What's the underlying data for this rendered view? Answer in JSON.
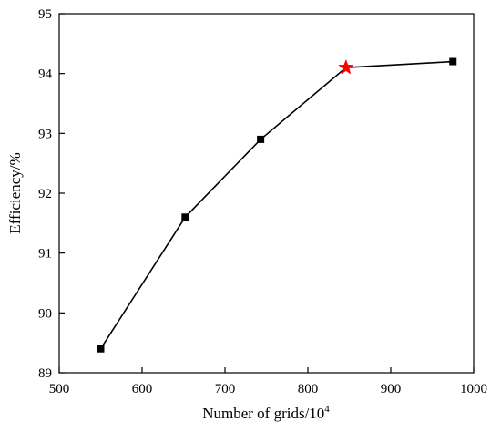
{
  "chart_data": {
    "type": "line",
    "title": "",
    "xlabel_main": "Number of grids/10",
    "xlabel_sup": "4",
    "ylabel": "Efficiency/%",
    "xlim": [
      500,
      1000
    ],
    "ylim": [
      89,
      95
    ],
    "xticks": [
      500,
      600,
      700,
      800,
      900,
      1000
    ],
    "yticks": [
      89,
      90,
      91,
      92,
      93,
      94,
      95
    ],
    "grid": false,
    "legend": "none",
    "series": [
      {
        "x": [
          550,
          652,
          743,
          846,
          975
        ],
        "y": [
          89.4,
          91.6,
          92.9,
          94.1,
          94.2
        ],
        "color": "#000000",
        "marker": "square",
        "highlight_index": 3,
        "highlight_marker": "star",
        "highlight_color": "#ff0000"
      }
    ]
  }
}
